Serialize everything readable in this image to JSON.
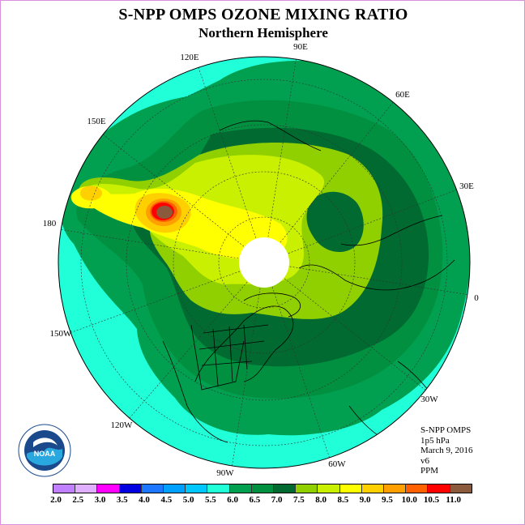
{
  "title": "S-NPP OMPS OZONE MIXING RATIO",
  "subtitle": "Northern Hemisphere",
  "longitude_labels": [
    "90E",
    "60E",
    "30E",
    "0",
    "30W",
    "60W",
    "90W",
    "120W",
    "150W",
    "180",
    "150E",
    "120E"
  ],
  "info": {
    "instrument": "S-NPP OMPS",
    "level": "1p5 hPa",
    "date": "March 9, 2016",
    "version": "v6",
    "unit": "PPM"
  },
  "legend": {
    "ticks": [
      "2.0",
      "2.5",
      "3.0",
      "3.5",
      "4.0",
      "4.5",
      "5.0",
      "5.5",
      "6.0",
      "6.5",
      "7.0",
      "7.5",
      "8.0",
      "8.5",
      "9.0",
      "9.5",
      "10.0",
      "10.5",
      "11.0"
    ],
    "colors": [
      "#c080ff",
      "#e0b0ff",
      "#ff00ff",
      "#0000e0",
      "#1e78ff",
      "#00a0ff",
      "#00c8ff",
      "#20ffd8",
      "#00a050",
      "#009040",
      "#006a30",
      "#90d000",
      "#c8f000",
      "#ffff00",
      "#ffd000",
      "#ffa000",
      "#ff6000",
      "#ff0000",
      "#8b5a3c"
    ]
  },
  "logo": {
    "text": "NOAA"
  }
}
